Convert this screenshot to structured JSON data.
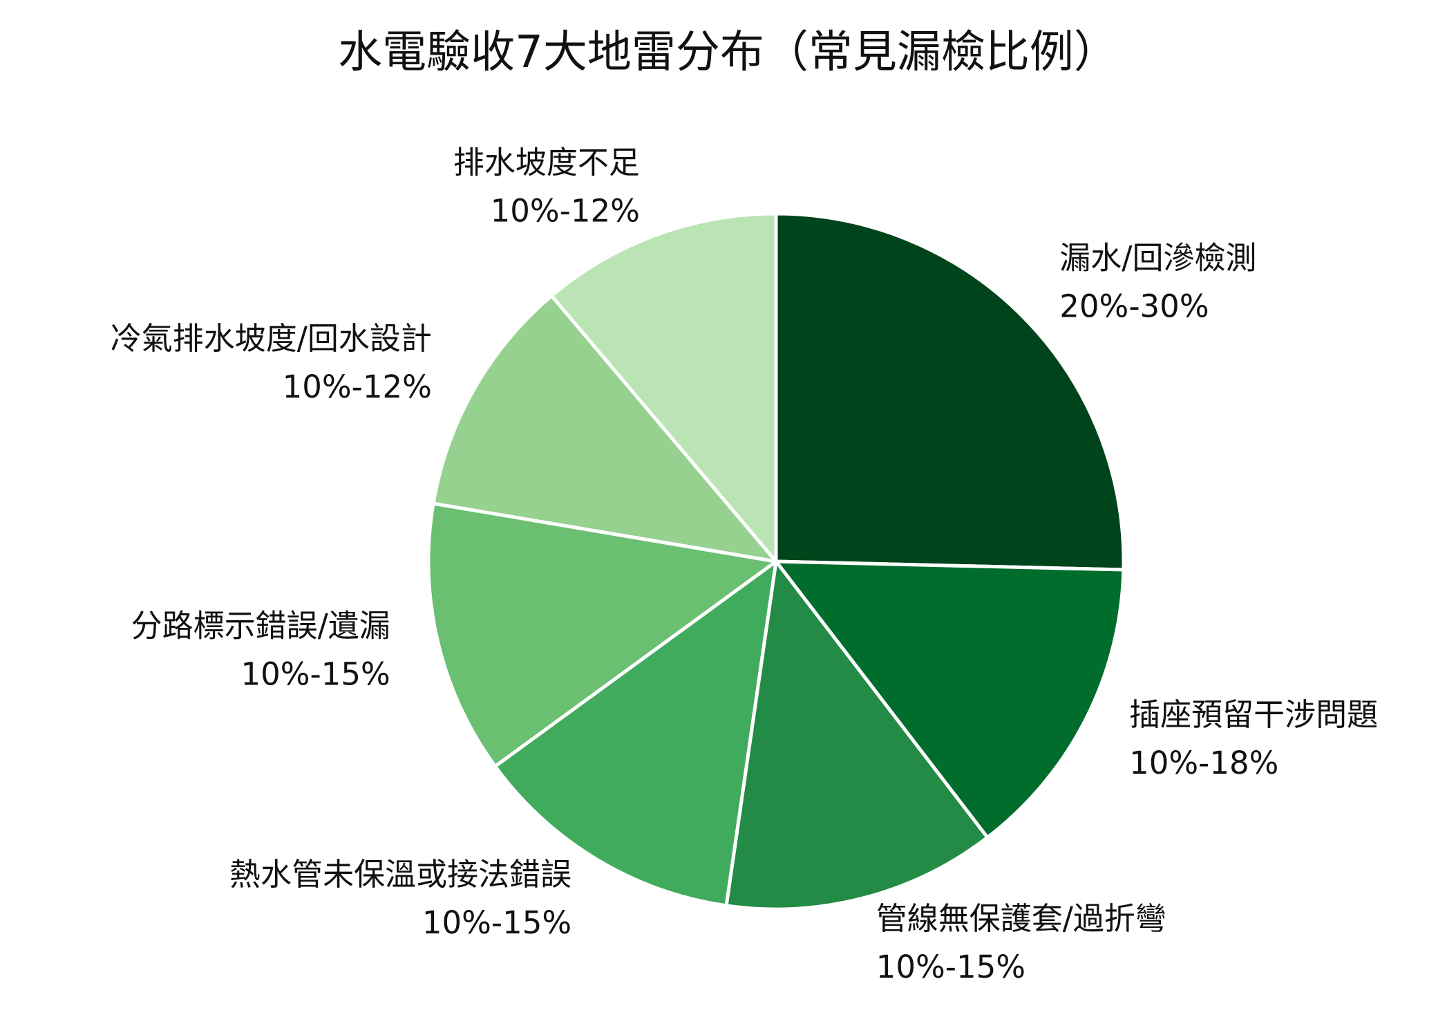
{
  "chart_data": {
    "type": "pie",
    "title": "水電驗收7大地雷分布（常見漏檢比例）",
    "slices": [
      {
        "label": "漏水/回滲檢測",
        "range_text": "20%-30%",
        "value": 25,
        "color": "#00441b"
      },
      {
        "label": "插座預留干涉問題",
        "range_text": "10%-18%",
        "value": 14,
        "color": "#006d2c"
      },
      {
        "label": "管線無保護套/過折彎",
        "range_text": "10%-15%",
        "value": 12.5,
        "color": "#238b45"
      },
      {
        "label": "熱水管未保溫或接法錯誤",
        "range_text": "10%-15%",
        "value": 12.5,
        "color": "#41ab5d"
      },
      {
        "label": "分路標示錯誤/遺漏",
        "range_text": "10%-15%",
        "value": 12.5,
        "color": "#6abf71"
      },
      {
        "label": "冷氣排水坡度/回水設計",
        "range_text": "10%-12%",
        "value": 11,
        "color": "#96d18f"
      },
      {
        "label": "排水坡度不足",
        "range_text": "10%-12%",
        "value": 11,
        "color": "#bae4b3"
      }
    ],
    "start_angle": 90,
    "direction": "clockwise",
    "edge_color": "#ffffff",
    "legend": "none",
    "labels": "outside"
  }
}
